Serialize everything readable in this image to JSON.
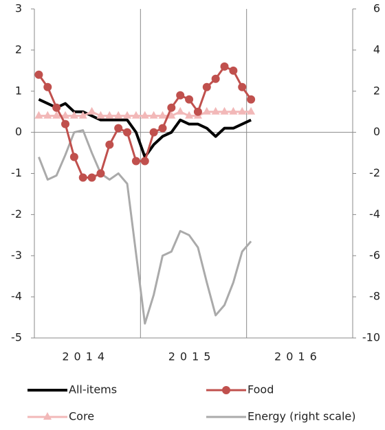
{
  "chart_data": {
    "type": "line",
    "categories": [
      null,
      null,
      null,
      null,
      null,
      "2014",
      null,
      null,
      null,
      null,
      null,
      null,
      null,
      null,
      null,
      null,
      null,
      "2015",
      null,
      null,
      null,
      null,
      null,
      null,
      null,
      null,
      null,
      null,
      null,
      "2016",
      null,
      null,
      null,
      null,
      null,
      null
    ],
    "ylim": [
      -5,
      3
    ],
    "yticks": [
      -5,
      -4,
      -3,
      -2,
      -1,
      0,
      1,
      2,
      3
    ],
    "y2lim": [
      -10,
      6
    ],
    "y2ticks": [
      -10,
      -8,
      -6,
      -4,
      -2,
      0,
      2,
      4,
      6
    ],
    "series": [
      {
        "name": "All-items",
        "color": "#000000",
        "values": [
          0.8,
          0.7,
          0.6,
          0.7,
          0.5,
          0.5,
          0.4,
          0.3,
          0.3,
          0.3,
          0.3,
          0.0,
          -0.6,
          -0.3,
          -0.1,
          0.0,
          0.3,
          0.2,
          0.2,
          0.1,
          -0.1,
          0.1,
          0.1,
          0.2,
          0.3,
          null,
          null,
          null,
          null,
          null,
          null,
          null,
          null,
          null,
          null,
          null
        ]
      },
      {
        "name": "Food",
        "color": "#c0504d",
        "marker": "circle",
        "values": [
          1.4,
          1.1,
          0.6,
          0.2,
          -0.6,
          -1.1,
          -1.1,
          -1.0,
          -0.3,
          0.1,
          0.0,
          -0.7,
          -0.7,
          0.0,
          0.1,
          0.6,
          0.9,
          0.8,
          0.5,
          1.1,
          1.3,
          1.6,
          1.5,
          1.1,
          0.8,
          null,
          null,
          null,
          null,
          null,
          null,
          null,
          null,
          null,
          null,
          null
        ]
      },
      {
        "name": "Core",
        "color": "#f2b8b8",
        "marker": "triangle",
        "values": [
          0.4,
          0.4,
          0.4,
          0.4,
          0.4,
          0.4,
          0.5,
          0.4,
          0.4,
          0.4,
          0.4,
          0.4,
          0.4,
          0.4,
          0.4,
          0.4,
          0.5,
          0.4,
          0.4,
          0.5,
          0.5,
          0.5,
          0.5,
          0.5,
          0.5,
          null,
          null,
          null,
          null,
          null,
          null,
          null,
          null,
          null,
          null,
          null
        ]
      },
      {
        "name": "Energy (right scale)",
        "color": "#aaaaaa",
        "axis": "y2",
        "values": [
          -1.2,
          -2.3,
          -2.1,
          -1.1,
          0.0,
          0.1,
          -1.0,
          -2.0,
          -2.3,
          -2.0,
          -2.5,
          -5.9,
          -9.3,
          -7.9,
          -6.0,
          -5.8,
          -4.8,
          -5.0,
          -5.6,
          -7.3,
          -8.9,
          -8.4,
          -7.3,
          -5.8,
          -5.3,
          null,
          null,
          null,
          null,
          null,
          null,
          null,
          null,
          null,
          null,
          null
        ]
      }
    ]
  }
}
